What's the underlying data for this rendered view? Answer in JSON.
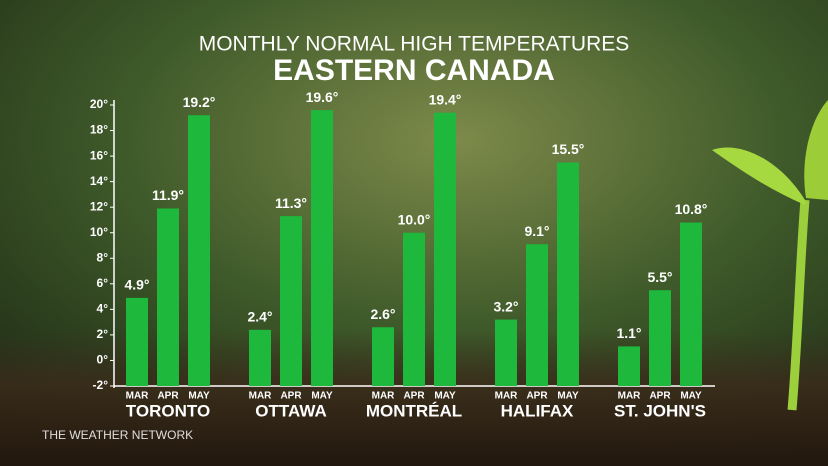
{
  "chart_data": {
    "type": "bar",
    "title": "MONTHLY NORMAL HIGH TEMPERATURES",
    "subtitle": "EASTERN CANADA",
    "source": "THE WEATHER NETWORK",
    "categories": [
      "TORONTO",
      "OTTAWA",
      "MONTRÉAL",
      "HALIFAX",
      "ST. JOHN'S"
    ],
    "series": [
      {
        "name": "MAR",
        "color": "#1db83c",
        "values": [
          4.9,
          2.4,
          2.6,
          3.2,
          1.1
        ],
        "value_labels": [
          "4.9°",
          "2.4°",
          "2.6°",
          "3.2°",
          "1.1°"
        ]
      },
      {
        "name": "APR",
        "color": "#1db83c",
        "values": [
          11.9,
          11.3,
          10.0,
          9.1,
          5.5
        ],
        "value_labels": [
          "11.9°",
          "11.3°",
          "10.0°",
          "9.1°",
          "5.5°"
        ]
      },
      {
        "name": "MAY",
        "color": "#1db83c",
        "values": [
          19.2,
          19.6,
          19.4,
          15.5,
          10.8
        ],
        "value_labels": [
          "19.2°",
          "19.6°",
          "19.4°",
          "15.5°",
          "10.8°"
        ]
      }
    ],
    "ylim": [
      -2,
      20
    ],
    "yticks": [
      {
        "value": -2,
        "label": "-2°"
      },
      {
        "value": 0,
        "label": "0°"
      },
      {
        "value": 2,
        "label": "2°"
      },
      {
        "value": 4,
        "label": "4°"
      },
      {
        "value": 6,
        "label": "6°"
      },
      {
        "value": 8,
        "label": "8°"
      },
      {
        "value": 10,
        "label": "10°"
      },
      {
        "value": 12,
        "label": "12°"
      },
      {
        "value": 14,
        "label": "14°"
      },
      {
        "value": 16,
        "label": "16°"
      },
      {
        "value": 18,
        "label": "18°"
      },
      {
        "value": 20,
        "label": "20°"
      }
    ]
  }
}
